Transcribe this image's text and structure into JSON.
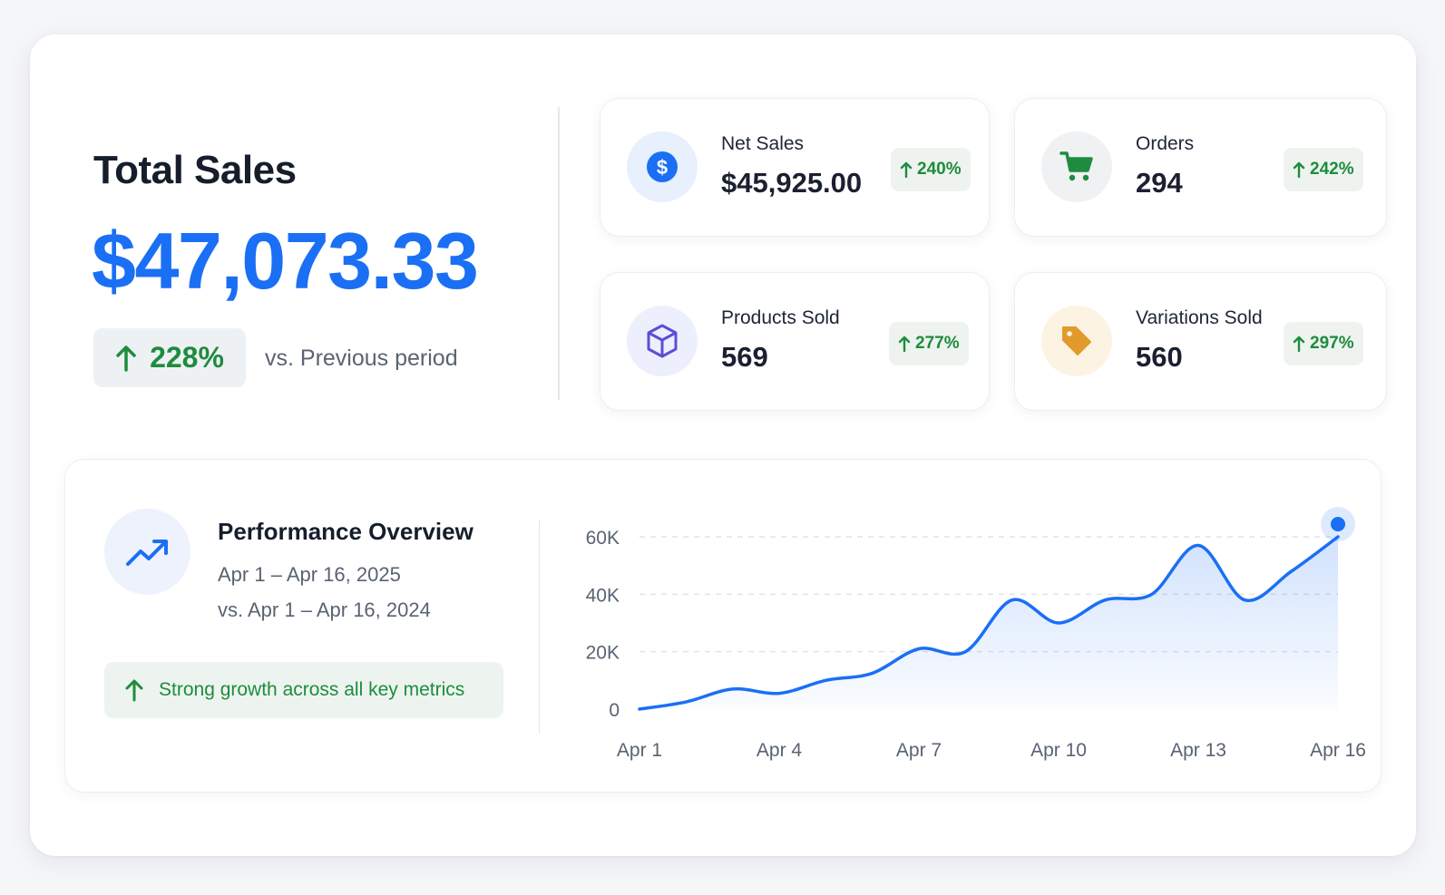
{
  "total_sales": {
    "title": "Total Sales",
    "value": "$47,073.33",
    "change": "228%",
    "comparison_label": "vs. Previous period"
  },
  "metrics": [
    {
      "label": "Net Sales",
      "value": "$45,925.00",
      "change": "240%",
      "icon": "dollar-icon",
      "icon_bg": "#e8effd",
      "icon_color": "#1a6ff5"
    },
    {
      "label": "Orders",
      "value": "294",
      "change": "242%",
      "icon": "cart-icon",
      "icon_bg": "#eff1f3",
      "icon_color": "#1e8c3e"
    },
    {
      "label": "Products Sold",
      "value": "569",
      "change": "277%",
      "icon": "box-icon",
      "icon_bg": "#eeeffc",
      "icon_color": "#5b4fd6"
    },
    {
      "label": "Variations Sold",
      "value": "560",
      "change": "297%",
      "icon": "tag-icon",
      "icon_bg": "#fdf3e2",
      "icon_color": "#e19a2c"
    }
  ],
  "performance": {
    "title": "Performance Overview",
    "date_range": "Apr 1 – Apr 16, 2025",
    "compare_range": "vs. Apr 1 – Apr 16, 2024",
    "note": "Strong growth across all key metrics"
  },
  "colors": {
    "accent": "#1a6ff5",
    "positive": "#1e8c3e"
  },
  "chart_data": {
    "type": "area",
    "x": [
      "Apr 1",
      "Apr 2",
      "Apr 3",
      "Apr 4",
      "Apr 5",
      "Apr 6",
      "Apr 7",
      "Apr 8",
      "Apr 9",
      "Apr 10",
      "Apr 11",
      "Apr 12",
      "Apr 13",
      "Apr 14",
      "Apr 15",
      "Apr 16"
    ],
    "x_tick_labels": [
      "Apr 1",
      "Apr 4",
      "Apr 7",
      "Apr 10",
      "Apr 13",
      "Apr 16"
    ],
    "series": [
      {
        "values": [
          0,
          2500,
          7000,
          5500,
          10000,
          12500,
          21000,
          20000,
          38000,
          30000,
          38000,
          40000,
          57000,
          38000,
          48000,
          60000
        ]
      }
    ],
    "y_ticks": [
      "0",
      "20K",
      "40K",
      "60K"
    ],
    "ylim": [
      0,
      60000
    ],
    "grid": true
  }
}
